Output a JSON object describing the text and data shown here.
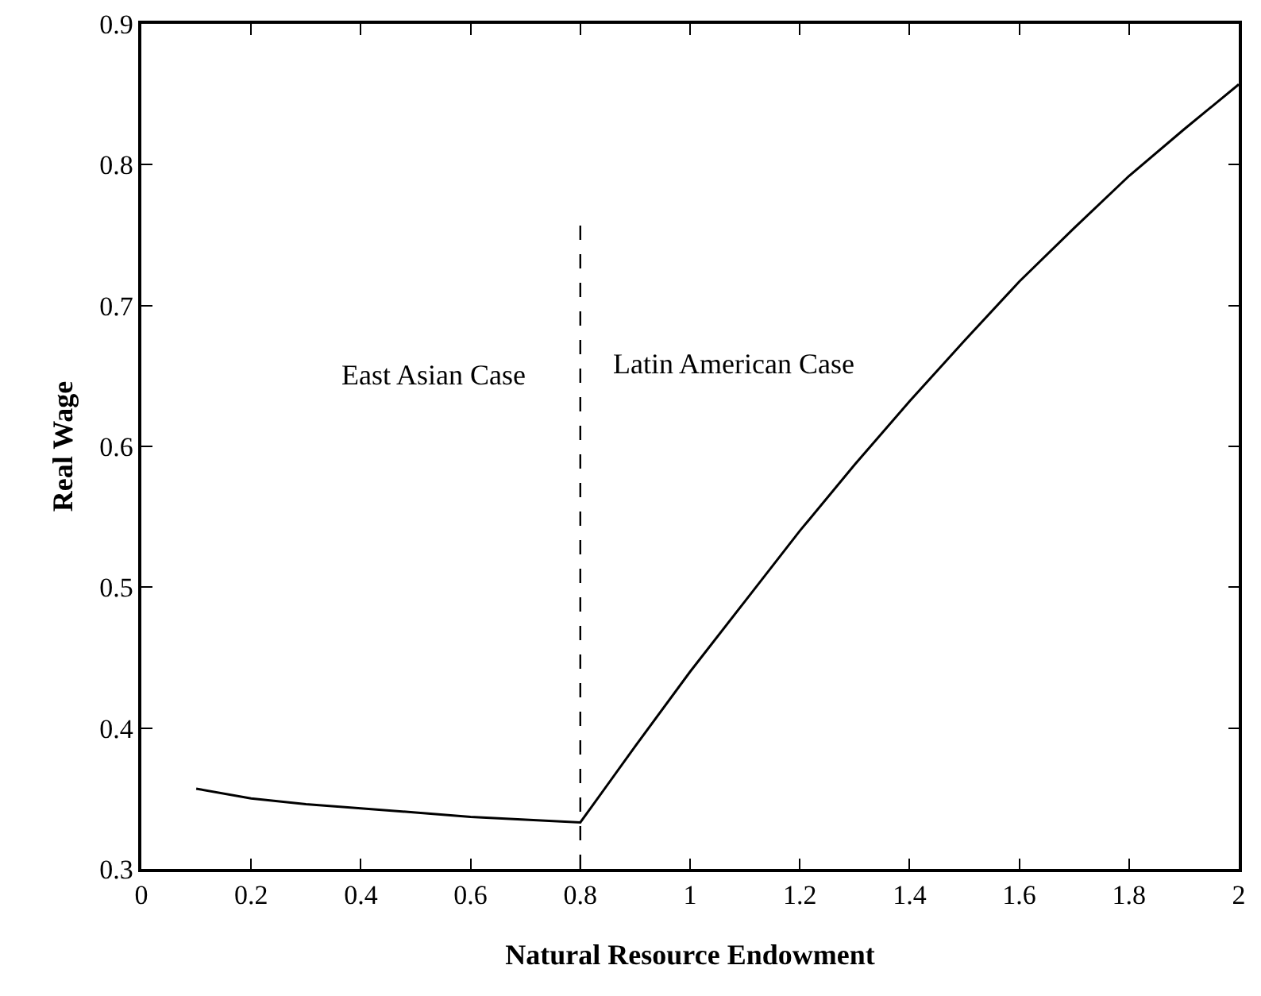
{
  "chart_data": {
    "type": "line",
    "xlabel": "Natural Resource Endowment",
    "ylabel": "Real Wage",
    "series": [
      {
        "color": "#000000",
        "x": [
          0.1,
          0.2,
          0.3,
          0.4,
          0.5,
          0.6,
          0.7,
          0.8,
          0.9,
          1.0,
          1.1,
          1.2,
          1.3,
          1.4,
          1.5,
          1.6,
          1.7,
          1.8,
          1.9,
          2.0
        ],
        "values": [
          0.357,
          0.35,
          0.346,
          0.343,
          0.34,
          0.337,
          0.335,
          0.333,
          0.387,
          0.44,
          0.49,
          0.54,
          0.587,
          0.632,
          0.675,
          0.717,
          0.755,
          0.792,
          0.825,
          0.857
        ]
      }
    ],
    "ref_lines": [
      {
        "axis": "x",
        "value": 0.8,
        "color": "#000000",
        "line_style": "dashed"
      }
    ],
    "annotations": [
      "East Asian Case",
      "Latin American Case"
    ],
    "xlim": [
      0,
      2
    ],
    "xticks": [
      0,
      0.2,
      0.4,
      0.6,
      0.8,
      1,
      1.2,
      1.4,
      1.6,
      1.8,
      2
    ],
    "ylim": [
      0.3,
      0.9
    ],
    "yticks": [
      0.3,
      0.4,
      0.5,
      0.6,
      0.7,
      0.8,
      0.9
    ],
    "grid": false,
    "marker": "none",
    "line_style": "solid"
  }
}
